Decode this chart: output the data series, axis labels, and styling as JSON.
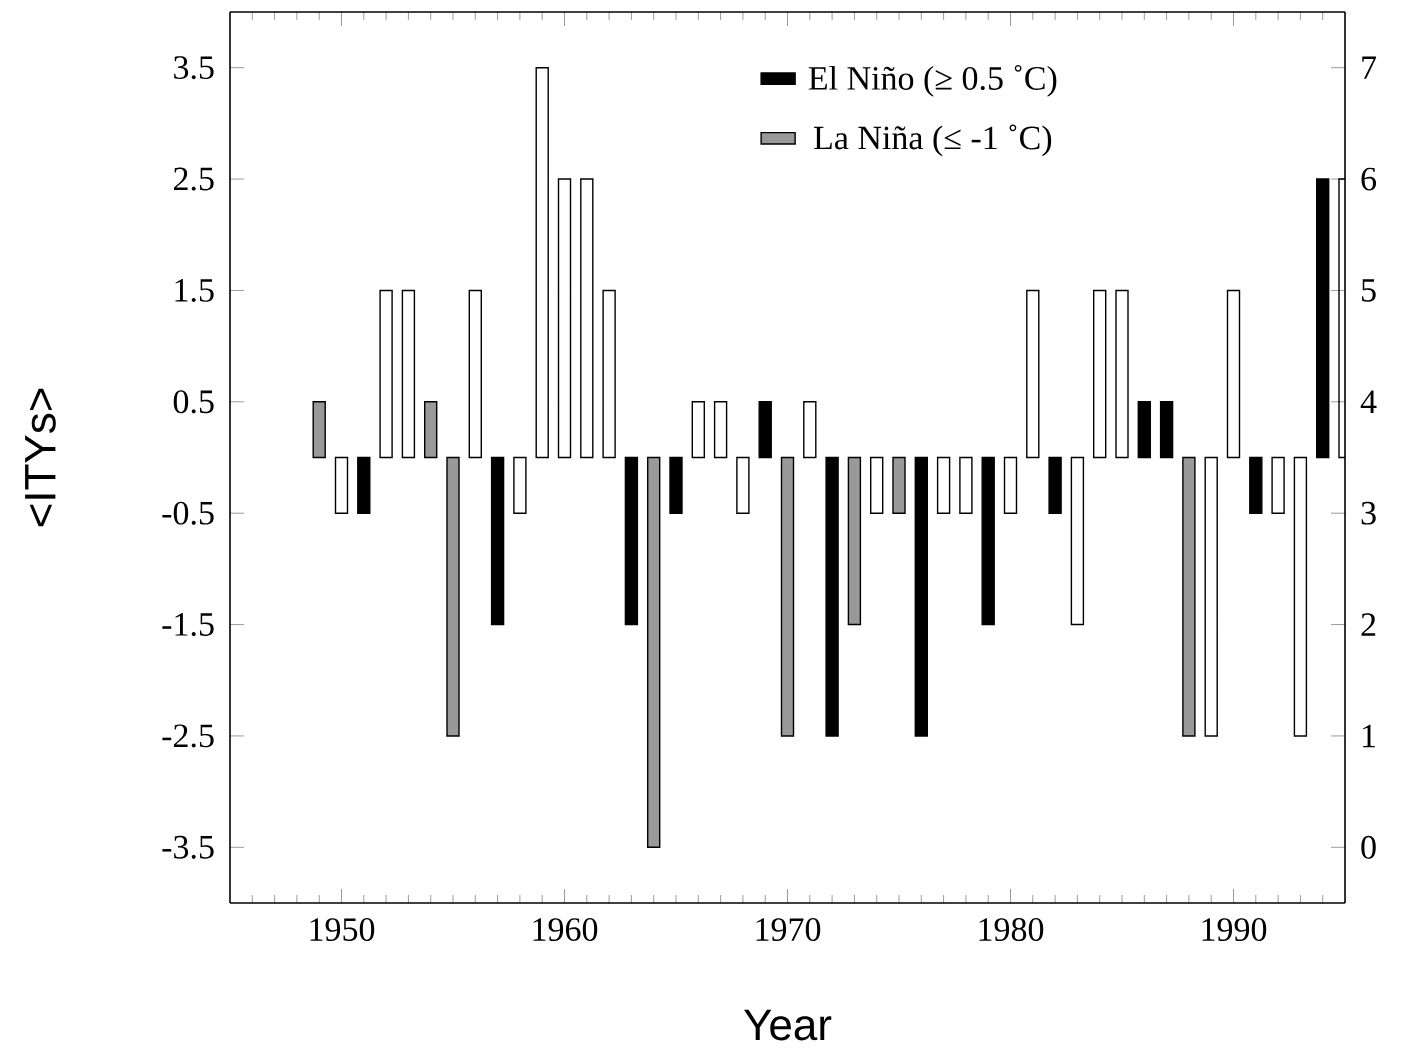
{
  "chart_data": {
    "type": "bar",
    "xlabel": "Year",
    "ylabel": "<ITYs>",
    "xlim": [
      1945,
      1995
    ],
    "xticks": [
      1950,
      1960,
      1970,
      1980,
      1990
    ],
    "ylim": [
      -4,
      4
    ],
    "yticks": [
      -3.5,
      -2.5,
      -1.5,
      -0.5,
      0.5,
      1.5,
      2.5,
      3.5
    ],
    "y2lim": [
      -0.5,
      7.5
    ],
    "y2ticks": [
      0,
      1,
      2,
      3,
      4,
      5,
      6,
      7
    ],
    "legend": "top right",
    "series": [
      {
        "name": "El Niño (≥ 0.5 ˚C)",
        "color": "#000000",
        "x": [
          1951,
          1957,
          1963,
          1965,
          1969,
          1972,
          1976,
          1979,
          1982,
          1986,
          1987,
          1991,
          1994
        ],
        "values": [
          -0.5,
          -1.5,
          -1.5,
          -0.5,
          0.5,
          -2.5,
          -2.5,
          -1.5,
          -0.5,
          0.5,
          0.5,
          -0.5,
          2.5
        ]
      },
      {
        "name": "La Niña (≤ -1 ˚C)",
        "color": "#999999",
        "x": [
          1949,
          1954,
          1955,
          1964,
          1970,
          1973,
          1975,
          1988
        ],
        "values": [
          0.5,
          0.5,
          -2.5,
          -3.5,
          -2.5,
          -1.5,
          -0.5,
          -2.5
        ]
      },
      {
        "color": "#ffffff",
        "x": [
          1950,
          1952,
          1953,
          1956,
          1958,
          1959,
          1960,
          1961,
          1962,
          1966,
          1967,
          1968,
          1971,
          1974,
          1977,
          1978,
          1980,
          1981,
          1983,
          1984,
          1985,
          1989,
          1990,
          1992,
          1993,
          1995
        ],
        "values": [
          -0.5,
          1.5,
          1.5,
          1.5,
          -0.5,
          3.5,
          2.5,
          2.5,
          1.5,
          0.5,
          0.5,
          -0.5,
          0.5,
          -0.5,
          -0.5,
          -0.5,
          -0.5,
          1.5,
          -1.5,
          1.5,
          1.5,
          -2.5,
          1.5,
          -0.5,
          -2.5,
          2.5
        ]
      }
    ]
  }
}
